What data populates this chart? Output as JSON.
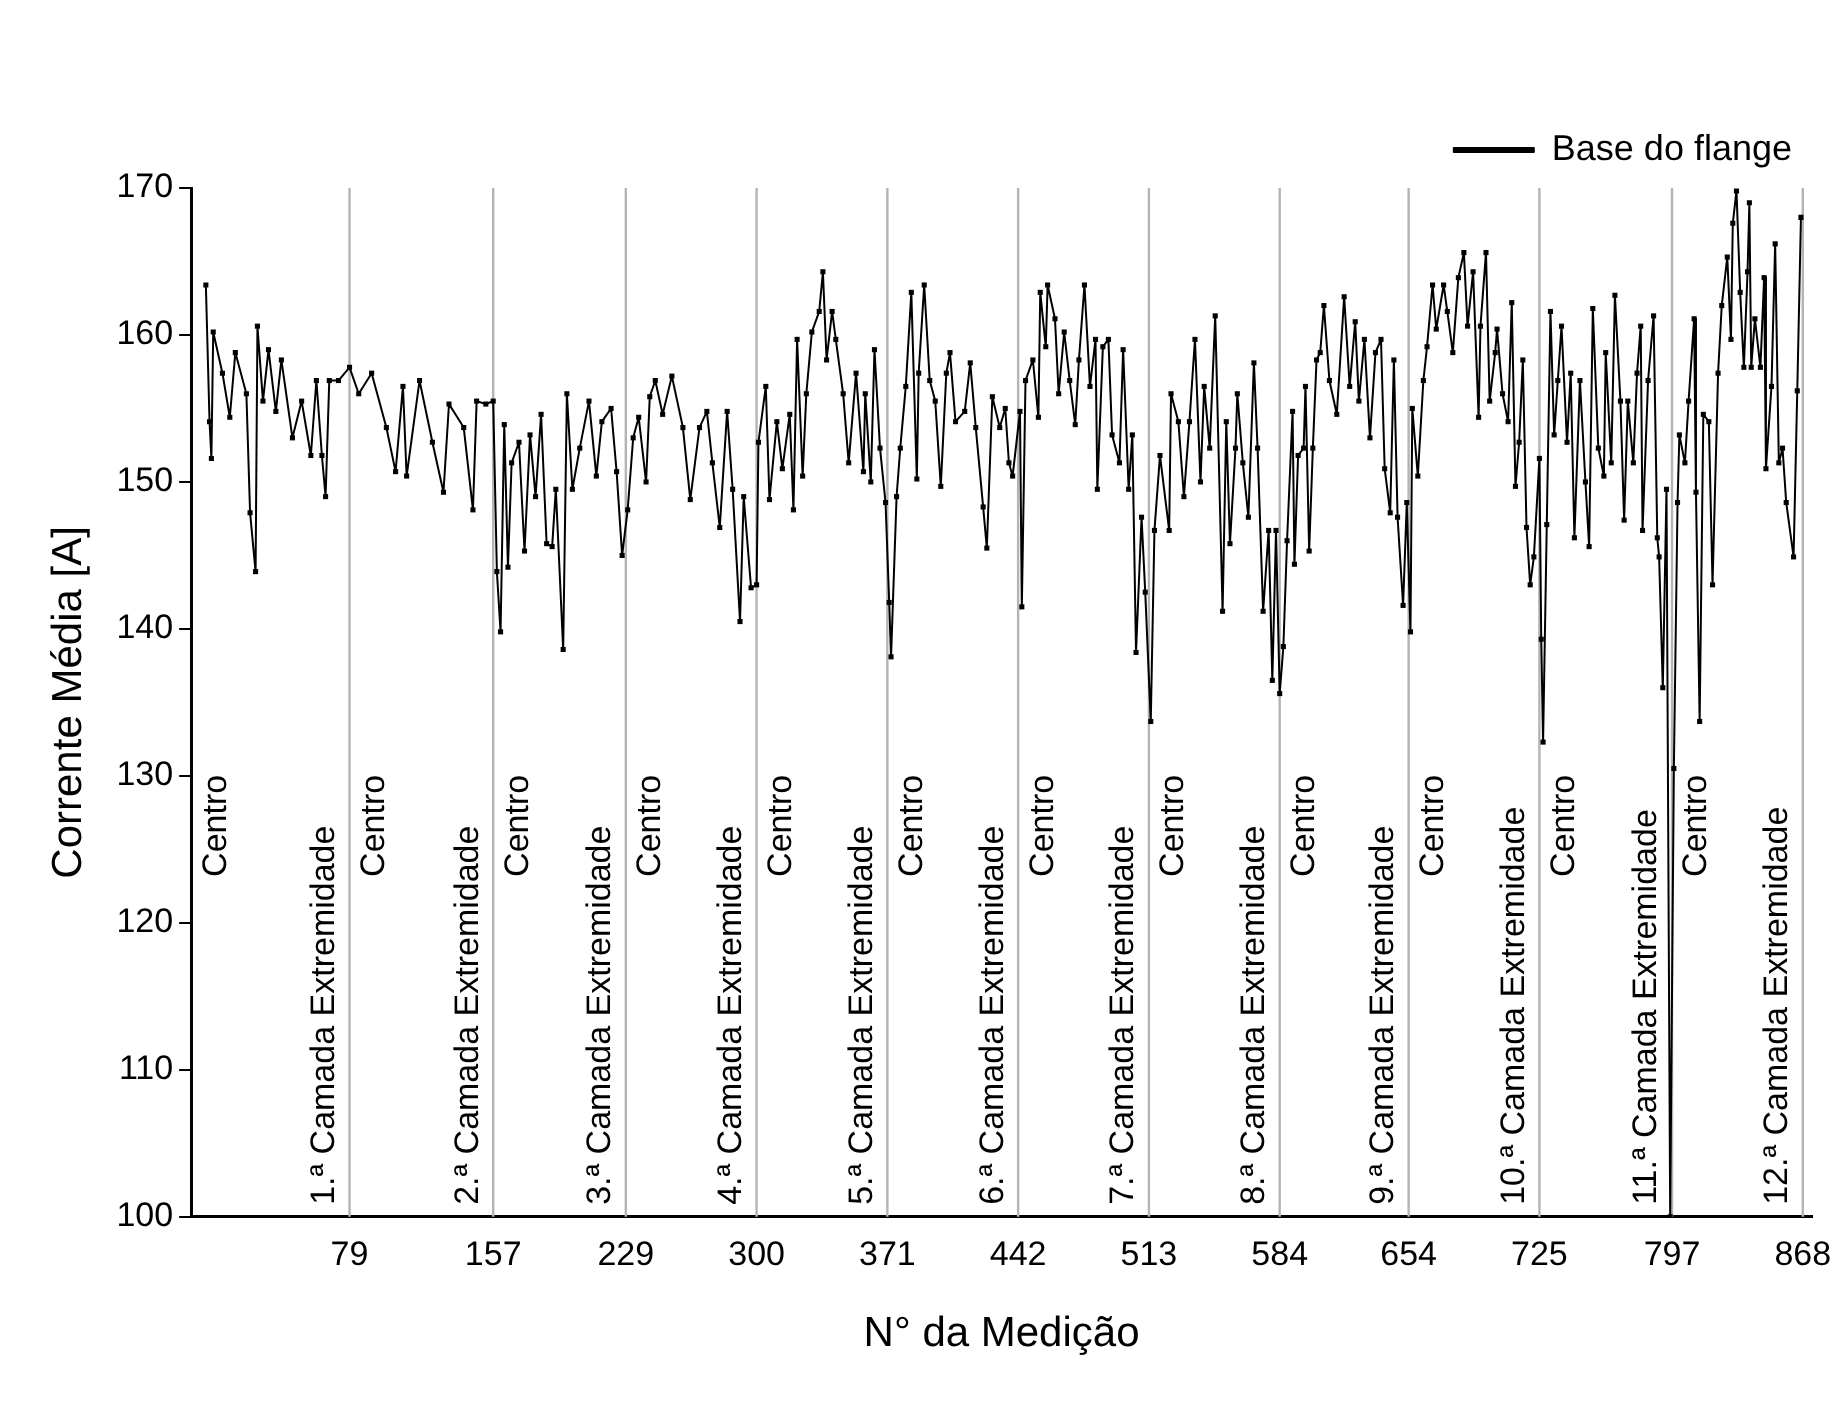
{
  "chart_data": {
    "type": "line",
    "xlabel": "N° da Medição",
    "ylabel": "Corrente Média [A]",
    "xlim": [
      -7,
      873
    ],
    "xticks": [
      79,
      157,
      229,
      300,
      371,
      442,
      513,
      584,
      654,
      725,
      797,
      868
    ],
    "ylim": [
      100,
      170
    ],
    "yticks": [
      100,
      110,
      120,
      130,
      140,
      150,
      160,
      170
    ],
    "grid": false,
    "legend": "top right",
    "marker": "square",
    "line_style": "solid",
    "series": [
      {
        "name": "Base do flange",
        "color": "#000000",
        "x": [
          1,
          3,
          4,
          5,
          10,
          14,
          17,
          23,
          25,
          28,
          29,
          32,
          35,
          39,
          42,
          48,
          53,
          58,
          61,
          64,
          66,
          68,
          73,
          79,
          84,
          91,
          99,
          104,
          108,
          110,
          117,
          124,
          130,
          133,
          141,
          146,
          148,
          153,
          157,
          159,
          161,
          163,
          165,
          167,
          171,
          174,
          177,
          180,
          183,
          186,
          189,
          191,
          195,
          197,
          200,
          204,
          209,
          213,
          216,
          221,
          224,
          227,
          230,
          233,
          236,
          240,
          242,
          245,
          249,
          254,
          260,
          264,
          269,
          273,
          276,
          280,
          284,
          287,
          291,
          293,
          297,
          300,
          301,
          305,
          307,
          311,
          314,
          318,
          320,
          322,
          325,
          327,
          330,
          334,
          336,
          338,
          341,
          343,
          347,
          350,
          354,
          358,
          359,
          362,
          364,
          367,
          370,
          372,
          373,
          376,
          378,
          381,
          384,
          387,
          388,
          391,
          394,
          397,
          400,
          403,
          405,
          408,
          413,
          416,
          419,
          423,
          425,
          428,
          432,
          435,
          437,
          439,
          443,
          444,
          446,
          450,
          453,
          454,
          457,
          458,
          462,
          464,
          467,
          470,
          473,
          475,
          478,
          481,
          484,
          485,
          488,
          491,
          493,
          497,
          499,
          502,
          504,
          506,
          509,
          511,
          514,
          516,
          519,
          524,
          525,
          529,
          532,
          535,
          538,
          541,
          543,
          546,
          549,
          553,
          555,
          557,
          560,
          561,
          564,
          567,
          570,
          572,
          575,
          578,
          580,
          582,
          584,
          586,
          588,
          591,
          592,
          594,
          597,
          598,
          600,
          602,
          604,
          606,
          608,
          611,
          615,
          619,
          622,
          625,
          627,
          630,
          633,
          636,
          639,
          641,
          644,
          646,
          648,
          651,
          653,
          655,
          656,
          659,
          662,
          664,
          667,
          669,
          673,
          675,
          678,
          681,
          684,
          686,
          689,
          692,
          693,
          696,
          698,
          701,
          702,
          705,
          708,
          710,
          712,
          714,
          716,
          718,
          720,
          722,
          725,
          726,
          727,
          729,
          731,
          733,
          735,
          737,
          740,
          742,
          744,
          747,
          750,
          752,
          754,
          757,
          760,
          761,
          764,
          766,
          769,
          771,
          773,
          776,
          778,
          780,
          781,
          784,
          787,
          789,
          790,
          792,
          794,
          796,
          798,
          800,
          801,
          804,
          806,
          809,
          810,
          812,
          814,
          817,
          819,
          822,
          824,
          827,
          829,
          830,
          832,
          834,
          836,
          838,
          839,
          840,
          842,
          845,
          847,
          848,
          851,
          853,
          855,
          857,
          859,
          863,
          865,
          867
        ],
        "values": [
          163.4,
          154.1,
          151.6,
          160.2,
          157.4,
          154.4,
          158.8,
          156,
          147.9,
          143.9,
          160.6,
          155.5,
          159,
          154.8,
          158.3,
          153,
          155.5,
          151.8,
          156.9,
          151.8,
          149,
          156.9,
          156.9,
          157.8,
          156,
          157.4,
          153.7,
          150.7,
          156.5,
          150.4,
          156.9,
          152.7,
          149.3,
          155.3,
          153.7,
          148.1,
          155.5,
          155.3,
          155.5,
          143.9,
          139.8,
          153.9,
          144.2,
          151.3,
          152.7,
          145.3,
          153.2,
          149,
          154.6,
          145.8,
          145.6,
          149.5,
          138.6,
          156,
          149.5,
          152.3,
          155.5,
          150.4,
          154.1,
          155,
          150.7,
          145,
          148.1,
          153,
          154.4,
          150,
          155.8,
          156.9,
          154.6,
          157.2,
          153.7,
          148.8,
          153.7,
          154.8,
          151.3,
          146.9,
          154.8,
          149.5,
          140.5,
          149,
          142.8,
          143,
          152.7,
          156.5,
          148.8,
          154.1,
          150.9,
          154.6,
          148.1,
          159.7,
          150.4,
          156,
          160.2,
          161.6,
          164.3,
          158.3,
          161.6,
          159.7,
          156,
          151.3,
          157.4,
          150.7,
          156,
          150,
          159,
          152.3,
          148.6,
          141.8,
          138.1,
          149,
          152.3,
          156.5,
          162.9,
          150.2,
          157.4,
          163.4,
          156.9,
          155.5,
          149.7,
          157.4,
          158.8,
          154.1,
          154.8,
          158.1,
          153.7,
          148.3,
          145.5,
          155.8,
          153.7,
          155,
          151.3,
          150.4,
          154.8,
          141.5,
          156.9,
          158.3,
          154.4,
          162.9,
          159.2,
          163.4,
          161.1,
          156,
          160.2,
          156.9,
          153.9,
          158.3,
          163.4,
          156.5,
          159.7,
          149.5,
          159.2,
          159.7,
          153.2,
          151.3,
          159,
          149.5,
          153.2,
          138.4,
          147.6,
          142.5,
          133.7,
          146.7,
          151.8,
          146.7,
          156,
          154.1,
          149,
          154.1,
          159.7,
          150,
          156.5,
          152.3,
          161.3,
          141.2,
          154.1,
          145.8,
          152.3,
          156,
          151.3,
          147.6,
          158.1,
          152.3,
          141.2,
          146.7,
          136.5,
          146.7,
          135.6,
          138.8,
          146,
          154.8,
          144.4,
          151.8,
          152.3,
          156.5,
          145.3,
          152.3,
          158.3,
          158.8,
          162,
          156.9,
          154.6,
          162.6,
          156.5,
          160.9,
          155.5,
          159.7,
          153,
          158.8,
          159.7,
          150.9,
          147.9,
          158.3,
          147.6,
          141.6,
          148.6,
          139.8,
          155,
          150.4,
          156.9,
          159.2,
          163.4,
          160.4,
          163.4,
          161.6,
          158.8,
          163.9,
          165.6,
          160.6,
          164.3,
          154.4,
          160.6,
          165.6,
          155.5,
          158.8,
          160.4,
          156,
          154.1,
          162.2,
          149.7,
          152.7,
          158.3,
          146.9,
          143,
          144.9,
          151.6,
          139.3,
          132.3,
          147.1,
          161.6,
          153.2,
          156.9,
          160.6,
          152.7,
          157.4,
          146.2,
          156.9,
          150,
          145.6,
          161.8,
          152.3,
          150.4,
          158.8,
          151.3,
          162.7,
          155.5,
          147.4,
          155.5,
          151.3,
          157.4,
          160.6,
          146.7,
          156.9,
          161.3,
          146.2,
          144.9,
          136,
          149.5,
          100,
          130.5,
          148.6,
          153.2,
          151.3,
          155.5,
          161.1,
          149.3,
          133.7,
          154.6,
          154.1,
          143,
          157.4,
          162,
          165.3,
          159.7,
          167.6,
          169.8,
          162.9,
          157.8,
          164.3,
          169,
          157.8,
          161.1,
          157.8,
          163.9,
          150.9,
          156.5,
          166.2,
          151.3,
          152.3,
          148.6,
          144.9,
          156.2,
          168
        ]
      }
    ],
    "ref_lines": [
      {
        "axis": "x",
        "value": 79,
        "label": "1.ª Camada Extremidade"
      },
      {
        "axis": "x",
        "value": 157,
        "label": "2.ª Camada Extremidade"
      },
      {
        "axis": "x",
        "value": 229,
        "label": "3.ª Camada Extremidade"
      },
      {
        "axis": "x",
        "value": 300,
        "label": "4.ª Camada Extremidade"
      },
      {
        "axis": "x",
        "value": 371,
        "label": "5.ª Camada Extremidade"
      },
      {
        "axis": "x",
        "value": 442,
        "label": "6.ª Camada Extremidade"
      },
      {
        "axis": "x",
        "value": 513,
        "label": "7.ª Camada Extremidade"
      },
      {
        "axis": "x",
        "value": 584,
        "label": "8.ª Camada Extremidade"
      },
      {
        "axis": "x",
        "value": 654,
        "label": "9.ª Camada Extremidade"
      },
      {
        "axis": "x",
        "value": 725,
        "label": "10.ª Camada Extremidade"
      },
      {
        "axis": "x",
        "value": 797,
        "label": "11.ª Camada Extremidade"
      },
      {
        "axis": "x",
        "value": 868,
        "label": "12.ª Camada Extremidade"
      }
    ],
    "annotations": [
      "Centro",
      "Centro",
      "Centro",
      "Centro",
      "Centro",
      "Centro",
      "Centro",
      "Centro",
      "Centro",
      "Centro",
      "Centro",
      "Centro"
    ]
  }
}
